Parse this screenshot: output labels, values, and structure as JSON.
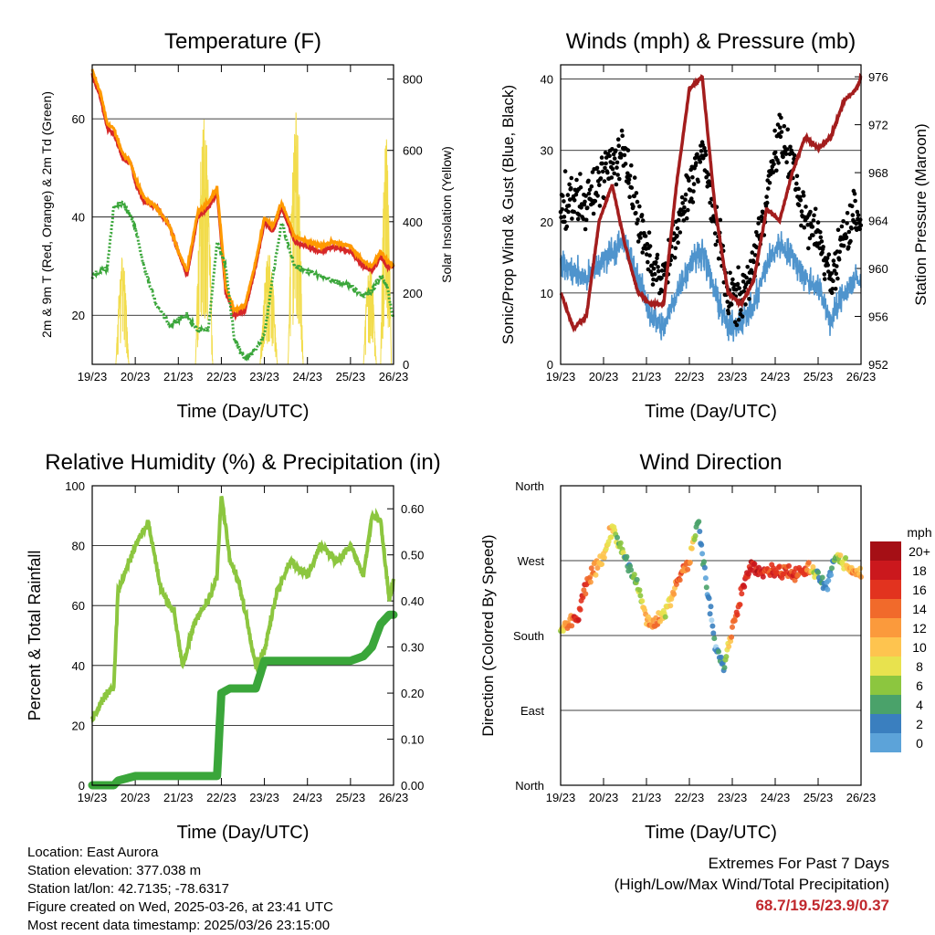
{
  "time_ticks": [
    "19/23",
    "20/23",
    "21/23",
    "22/23",
    "23/23",
    "24/23",
    "25/23",
    "26/23"
  ],
  "xlabel": "Time (Day/UTC)",
  "temperature": {
    "title": "Temperature (F)",
    "ylabel": "2m & 9m T (Red, Orange) & 2m Td (Green)",
    "ylabel_right": "Solar Insolation (Yellow)"
  },
  "winds": {
    "title": "Winds (mph) & Pressure (mb)",
    "ylabel": "Sonic/Prop Wind & Gust (Blue, Black)",
    "ylabel_right": "Station Pressure (Maroon)"
  },
  "humidity": {
    "title": "Relative Humidity (%) & Precipitation (in)",
    "ylabel": "Percent & Total Rainfall"
  },
  "direction": {
    "title": "Wind Direction",
    "ylabel": "Direction (Colored By Speed)",
    "colorbar_title": "mph",
    "colorbar_labels": [
      "20+",
      "18",
      "16",
      "14",
      "12",
      "10",
      "8",
      "6",
      "4",
      "2",
      "0"
    ],
    "colorbar_colors": [
      "#a50f15",
      "#cb181d",
      "#e2331f",
      "#f16a2b",
      "#fb9a3c",
      "#fec44f",
      "#e8e24e",
      "#8cc63f",
      "#4aa26a",
      "#3a7fbf",
      "#5ca3d9",
      "#a6d2ee",
      "#c6e6f8"
    ]
  },
  "info": {
    "location": "Location: East Aurora",
    "elevation": "Station elevation: 377.038 m",
    "latlon": "Station lat/lon: 42.7135; -78.6317",
    "created": "Figure created on Wed, 2025-03-26, at 23:41 UTC",
    "recent": "Most recent data timestamp: 2025/03/26 23:15:00"
  },
  "extremes": {
    "line1": "Extremes For Past 7 Days",
    "line2": "(High/Low/Max Wind/Total Precipitation)",
    "values": "68.7/19.5/23.9/0.37"
  },
  "chart_data": [
    {
      "type": "line",
      "title": "Temperature (F)",
      "xlabel": "Time (Day/UTC)",
      "ylabel": "2m & 9m T (Red, Orange) & 2m Td (Green)",
      "ylabel_right": "Solar Insolation (Yellow)",
      "ylim": [
        10,
        71
      ],
      "ylim_right": [
        0,
        840
      ],
      "yticks": [
        20,
        40,
        60
      ],
      "yticks_right": [
        0,
        200,
        400,
        600,
        800
      ],
      "x_days": [
        0,
        0.2,
        0.35,
        0.5,
        0.7,
        0.9,
        1.0,
        1.2,
        1.5,
        1.8,
        2.0,
        2.2,
        2.45,
        2.7,
        2.9,
        3.1,
        3.3,
        3.55,
        3.8,
        4.0,
        4.2,
        4.4,
        4.7,
        5.0,
        5.3,
        5.6,
        6.0,
        6.3,
        6.5,
        6.7,
        6.85,
        7.0
      ],
      "series": [
        {
          "name": "2m T",
          "color": "#d62728",
          "values": [
            69,
            64,
            58,
            57,
            52,
            51,
            47,
            43,
            42,
            38,
            33,
            28,
            40,
            42,
            45,
            25,
            20,
            21,
            30,
            39,
            37,
            42,
            35,
            34,
            33,
            34,
            33,
            30,
            29,
            32,
            30,
            30
          ]
        },
        {
          "name": "9m T",
          "color": "#ff9900",
          "values": [
            70,
            65,
            59,
            58,
            53,
            51,
            48,
            44,
            42,
            38,
            33,
            29,
            41,
            43,
            46,
            26,
            21,
            22,
            31,
            40,
            38,
            43,
            36,
            35,
            34,
            35,
            34,
            31,
            30,
            33,
            31,
            30
          ]
        },
        {
          "name": "2m Td",
          "color": "#3aa63a",
          "values": [
            28,
            29,
            30,
            42,
            43,
            40,
            38,
            30,
            22,
            18,
            19,
            20,
            17,
            17,
            35,
            30,
            15,
            11,
            13,
            16,
            28,
            39,
            30,
            29,
            28,
            27,
            26,
            24,
            25,
            28,
            26,
            19
          ]
        }
      ],
      "solar": {
        "name": "Solar Insolation",
        "color": "#f2dc4b",
        "day_peaks": [
          [
            0.5,
            310
          ],
          [
            1.55,
            0
          ],
          [
            2.6,
            730
          ],
          [
            3.6,
            0
          ],
          [
            4.6,
            720
          ],
          [
            5.6,
            0
          ],
          [
            6.8,
            650
          ]
        ]
      }
    },
    {
      "type": "line",
      "title": "Winds (mph) & Pressure (mb)",
      "xlabel": "Time (Day/UTC)",
      "ylabel": "Sonic/Prop Wind & Gust (Blue, Black)",
      "ylabel_right": "Station Pressure (Maroon)",
      "ylim": [
        0,
        42
      ],
      "ylim_right": [
        952,
        977
      ],
      "yticks": [
        0,
        10,
        20,
        30,
        40
      ],
      "yticks_right": [
        952,
        956,
        960,
        964,
        968,
        972,
        976
      ],
      "x_days": [
        0,
        0.3,
        0.6,
        0.9,
        1.2,
        1.5,
        1.8,
        2.1,
        2.4,
        2.7,
        3.0,
        3.3,
        3.6,
        3.9,
        4.2,
        4.5,
        4.8,
        5.1,
        5.4,
        5.7,
        6.0,
        6.3,
        6.6,
        6.9,
        7.0
      ],
      "series": [
        {
          "name": "Wind",
          "color": "#4f94cd",
          "values": [
            14,
            13,
            12,
            14,
            16,
            17,
            12,
            7,
            5,
            10,
            14,
            16,
            10,
            5,
            6,
            8,
            14,
            17,
            15,
            12,
            11,
            6,
            10,
            12,
            11
          ]
        },
        {
          "name": "Gust",
          "color": "#000000",
          "values": [
            22,
            24,
            22,
            26,
            28,
            30,
            20,
            14,
            12,
            18,
            25,
            30,
            20,
            10,
            9,
            14,
            24,
            32,
            28,
            20,
            18,
            12,
            18,
            22,
            20
          ]
        },
        {
          "name": "Station Pressure",
          "color": "#a31d1d",
          "values": [
            958,
            955,
            956,
            964,
            967,
            962,
            958,
            957,
            957,
            967,
            975,
            976,
            965,
            958,
            957,
            959,
            965,
            964,
            968,
            971,
            970,
            971,
            974,
            975,
            976
          ]
        }
      ]
    },
    {
      "type": "line",
      "title": "Relative Humidity (%) & Precipitation (in)",
      "xlabel": "Time (Day/UTC)",
      "ylabel": "Percent & Total Rainfall",
      "ylim": [
        0,
        100
      ],
      "ylim_right": [
        0,
        0.65
      ],
      "yticks": [
        0,
        20,
        40,
        60,
        80,
        100
      ],
      "yticks_right": [
        0.0,
        0.1,
        0.2,
        0.3,
        0.4,
        0.5,
        0.6
      ],
      "x_days": [
        0,
        0.3,
        0.5,
        0.6,
        1.0,
        1.3,
        1.6,
        1.9,
        2.1,
        2.4,
        2.7,
        2.9,
        3.0,
        3.2,
        3.4,
        3.6,
        3.8,
        4.0,
        4.3,
        4.6,
        5.0,
        5.3,
        5.7,
        6.0,
        6.3,
        6.5,
        6.7,
        6.9,
        7.0
      ],
      "series": [
        {
          "name": "Relative Humidity",
          "color": "#8cc63f",
          "values": [
            22,
            30,
            33,
            65,
            80,
            88,
            65,
            58,
            40,
            55,
            62,
            70,
            97,
            75,
            68,
            55,
            40,
            45,
            65,
            75,
            70,
            80,
            75,
            80,
            70,
            90,
            88,
            62,
            68
          ]
        },
        {
          "name": "Total Precipitation",
          "color": "#3aa63a",
          "values": [
            0,
            0,
            0,
            0.01,
            0.02,
            0.02,
            0.02,
            0.02,
            0.02,
            0.02,
            0.02,
            0.02,
            0.2,
            0.21,
            0.21,
            0.21,
            0.21,
            0.27,
            0.27,
            0.27,
            0.27,
            0.27,
            0.27,
            0.27,
            0.28,
            0.3,
            0.35,
            0.37,
            0.37
          ]
        }
      ]
    },
    {
      "type": "scatter",
      "title": "Wind Direction",
      "xlabel": "Time (Day/UTC)",
      "ylabel": "Direction (Colored By Speed)",
      "yticks": [
        "North",
        "East",
        "South",
        "West",
        "North"
      ],
      "ylim": [
        0,
        360
      ],
      "colorbar_title": "mph",
      "colorbar_levels": [
        0,
        2,
        4,
        6,
        8,
        10,
        12,
        14,
        16,
        18,
        20
      ],
      "x_days": [
        0,
        0.2,
        0.4,
        0.6,
        0.8,
        1.0,
        1.2,
        1.4,
        1.6,
        1.8,
        2.0,
        2.2,
        2.4,
        2.6,
        2.8,
        3.0,
        3.2,
        3.4,
        3.6,
        3.8,
        4.0,
        4.2,
        4.4,
        4.6,
        4.8,
        5.0,
        5.2,
        5.4,
        5.6,
        5.8,
        6.0,
        6.2,
        6.4,
        6.6,
        6.8,
        7.0
      ],
      "directions": [
        185,
        195,
        200,
        240,
        260,
        275,
        310,
        285,
        260,
        240,
        200,
        195,
        205,
        230,
        255,
        270,
        320,
        240,
        170,
        140,
        190,
        230,
        265,
        255,
        260,
        255,
        260,
        255,
        255,
        260,
        250,
        240,
        275,
        265,
        260,
        255
      ],
      "speeds": [
        10,
        14,
        18,
        16,
        14,
        12,
        10,
        8,
        6,
        8,
        12,
        14,
        10,
        12,
        16,
        14,
        6,
        5,
        4,
        6,
        14,
        16,
        18,
        18,
        16,
        17,
        16,
        17,
        16,
        14,
        6,
        4,
        8,
        10,
        14,
        12
      ]
    }
  ]
}
